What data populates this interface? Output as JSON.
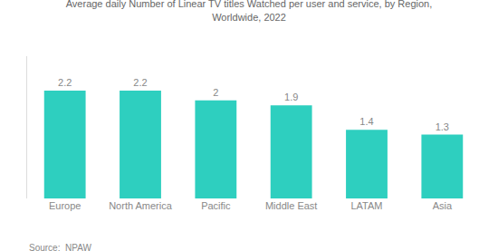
{
  "chart_data": {
    "type": "bar",
    "title": "Average daily Number of Linear TV titles Watched per user and service, by Region,\nWorldwide, 2022",
    "categories": [
      "Europe",
      "North America",
      "Pacific",
      "Middle East",
      "LATAM",
      "Asia"
    ],
    "values": [
      2.2,
      2.2,
      2.0,
      1.9,
      1.4,
      1.3
    ],
    "color": "#2ECFBF",
    "data_labels": true,
    "ylim": [
      0,
      2.9
    ],
    "grid": false,
    "tick_labels": "x",
    "annotations": [
      "Source:  NPAW"
    ]
  }
}
